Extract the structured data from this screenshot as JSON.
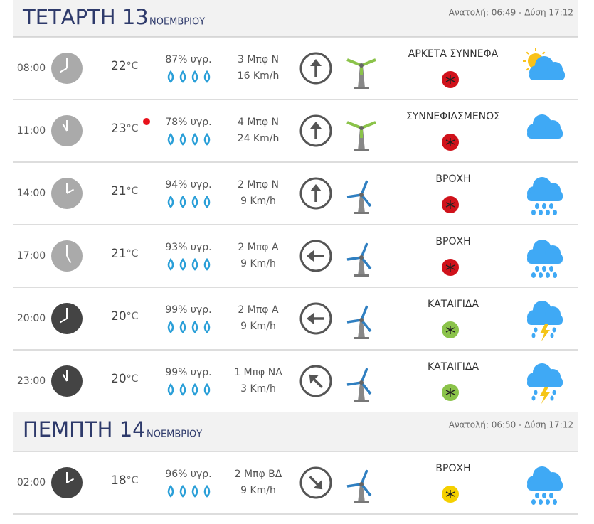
{
  "days": [
    {
      "title": "ΤΕΤΑΡΤΗ 13",
      "month": "ΝΟΕΜΒΡΙΟΥ",
      "sun": "Ανατολή: 06:49  - Δύση 17:12",
      "rows": [
        {
          "time": "08:00",
          "temp": "22",
          "unit": "°C",
          "humidity": "87% υγρ.",
          "wind": "3 Μπφ Ν",
          "speed": "16 Km/h",
          "condition": "ΑΡΚΕΤΑ ΣΥΝΝΕΦΑ"
        },
        {
          "time": "11:00",
          "temp": "23",
          "unit": "°C",
          "humidity": "78% υγρ.",
          "wind": "4 Μπφ Ν",
          "speed": "24 Km/h",
          "condition": "ΣΥΝΝΕΦΙΑΣΜΕΝΟΣ"
        },
        {
          "time": "14:00",
          "temp": "21",
          "unit": "°C",
          "humidity": "94% υγρ.",
          "wind": "2 Μπφ Ν",
          "speed": "9 Km/h",
          "condition": "ΒΡΟΧΗ"
        },
        {
          "time": "17:00",
          "temp": "21",
          "unit": "°C",
          "humidity": "93% υγρ.",
          "wind": "2 Μπφ Α",
          "speed": "9 Km/h",
          "condition": "ΒΡΟΧΗ"
        },
        {
          "time": "20:00",
          "temp": "20",
          "unit": "°C",
          "humidity": "99% υγρ.",
          "wind": "2 Μπφ Α",
          "speed": "9 Km/h",
          "condition": "ΚΑΤΑΙΓΙΔΑ"
        },
        {
          "time": "23:00",
          "temp": "20",
          "unit": "°C",
          "humidity": "99% υγρ.",
          "wind": "1 Μπφ ΝΑ",
          "speed": "3 Km/h",
          "condition": "ΚΑΤΑΙΓΙΔΑ"
        }
      ]
    },
    {
      "title": "ΠΕΜΠΤΗ 14",
      "month": "ΝΟΕΜΒΡΙΟΥ",
      "sun": "Ανατολή: 06:50  - Δύση 17:12",
      "rows": [
        {
          "time": "02:00",
          "temp": "18",
          "unit": "°C",
          "humidity": "96% υγρ.",
          "wind": "2 Μπφ ΒΔ",
          "speed": "9 Km/h",
          "condition": "ΒΡΟΧΗ"
        }
      ]
    }
  ]
}
